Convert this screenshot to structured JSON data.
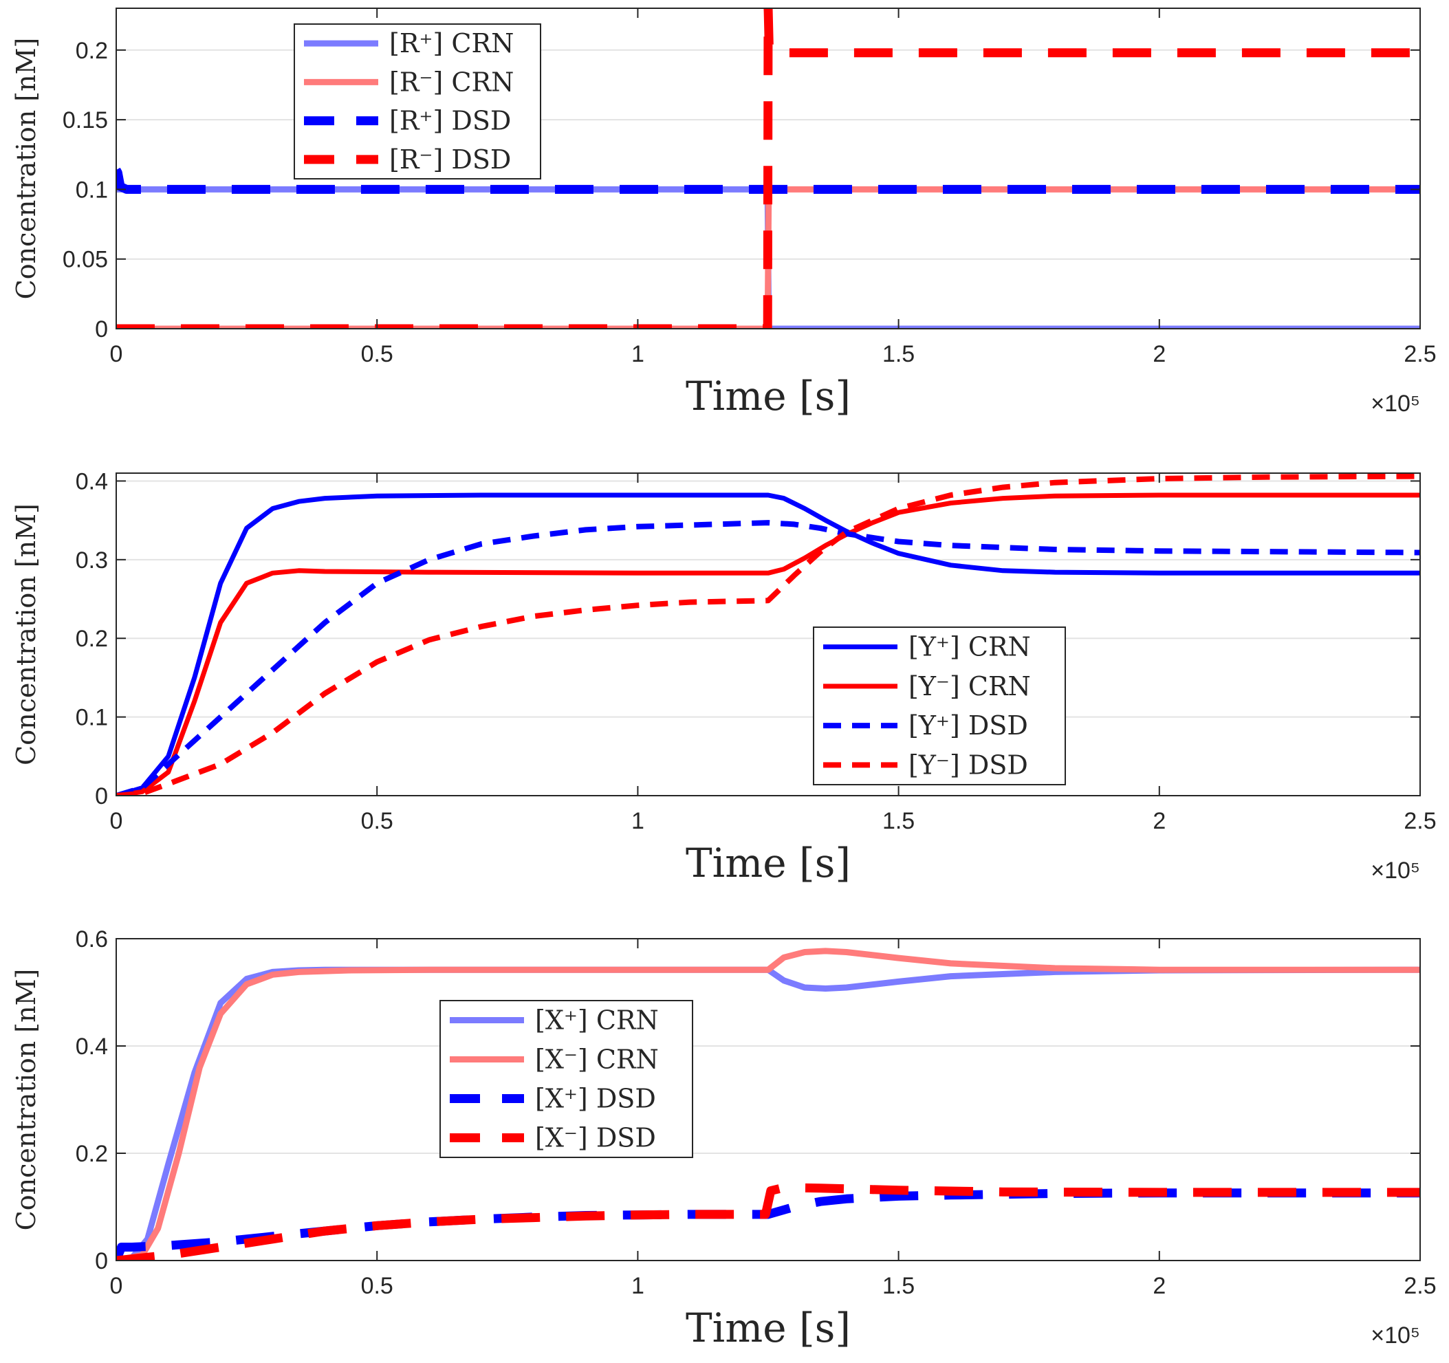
{
  "chart_data": [
    {
      "type": "line",
      "title": "",
      "xlabel": "Time [s]",
      "ylabel": "Concentration [nM]",
      "x_exponent": "×10⁵",
      "xlim": [
        0,
        2.5
      ],
      "ylim": [
        0,
        0.23
      ],
      "xticks": [
        0,
        0.5,
        1,
        1.5,
        2,
        2.5
      ],
      "xtick_labels": [
        "0",
        "0.5",
        "1",
        "1.5",
        "2",
        "2.5"
      ],
      "yticks": [
        0,
        0.05,
        0.1,
        0.15,
        0.2
      ],
      "ytick_labels": [
        "0",
        "0.05",
        "0.1",
        "0.15",
        "0.2"
      ],
      "grid": true,
      "legend_position": "top-left",
      "series": [
        {
          "name": "[R⁺] CRN",
          "color": "#7b7bff",
          "style": "solid-thick",
          "x": [
            0,
            1.249,
            1.251,
            2.5
          ],
          "y": [
            0.1,
            0.1,
            0.0,
            0.0
          ]
        },
        {
          "name": "[R⁻] CRN",
          "color": "#ff7b7b",
          "style": "solid-thick",
          "x": [
            0,
            1.249,
            1.251,
            2.5
          ],
          "y": [
            0.0,
            0.0,
            0.1,
            0.1
          ]
        },
        {
          "name": "[R⁺] DSD",
          "color": "#0000ff",
          "style": "dash-thick",
          "x": [
            0,
            0.003,
            0.008,
            0.02,
            2.5
          ],
          "y": [
            0.114,
            0.112,
            0.102,
            0.1,
            0.1
          ]
        },
        {
          "name": "[R⁻] DSD",
          "color": "#ff0000",
          "style": "dash-thick",
          "x": [
            0,
            1.249,
            1.25,
            1.252,
            1.27,
            2.5
          ],
          "y": [
            0.0,
            0.0,
            0.23,
            0.2,
            0.198,
            0.198
          ]
        }
      ]
    },
    {
      "type": "line",
      "title": "",
      "xlabel": "Time [s]",
      "ylabel": "Concentration [nM]",
      "x_exponent": "×10⁵",
      "xlim": [
        0,
        2.5
      ],
      "ylim": [
        0,
        0.41
      ],
      "xticks": [
        0,
        0.5,
        1,
        1.5,
        2,
        2.5
      ],
      "xtick_labels": [
        "0",
        "0.5",
        "1",
        "1.5",
        "2",
        "2.5"
      ],
      "yticks": [
        0,
        0.1,
        0.2,
        0.3,
        0.4
      ],
      "ytick_labels": [
        "0",
        "0.1",
        "0.2",
        "0.3",
        "0.4"
      ],
      "grid": true,
      "legend_position": "bottom-right",
      "series": [
        {
          "name": "[Y⁺] CRN",
          "color": "#0000ff",
          "style": "solid",
          "x": [
            0,
            0.05,
            0.1,
            0.15,
            0.2,
            0.25,
            0.3,
            0.35,
            0.4,
            0.5,
            0.7,
            1.0,
            1.25,
            1.28,
            1.32,
            1.36,
            1.4,
            1.45,
            1.5,
            1.6,
            1.7,
            1.8,
            2.0,
            2.5
          ],
          "y": [
            0.0,
            0.01,
            0.05,
            0.15,
            0.27,
            0.34,
            0.365,
            0.374,
            0.378,
            0.381,
            0.382,
            0.382,
            0.382,
            0.378,
            0.365,
            0.35,
            0.336,
            0.321,
            0.308,
            0.293,
            0.286,
            0.284,
            0.283,
            0.283
          ]
        },
        {
          "name": "[Y⁻] CRN",
          "color": "#ff0000",
          "style": "solid",
          "x": [
            0,
            0.05,
            0.1,
            0.15,
            0.2,
            0.25,
            0.3,
            0.35,
            0.4,
            0.6,
            1.0,
            1.25,
            1.28,
            1.32,
            1.36,
            1.4,
            1.45,
            1.5,
            1.6,
            1.7,
            1.8,
            2.0,
            2.5
          ],
          "y": [
            0.0,
            0.005,
            0.03,
            0.12,
            0.22,
            0.27,
            0.283,
            0.286,
            0.285,
            0.284,
            0.283,
            0.283,
            0.288,
            0.302,
            0.318,
            0.332,
            0.347,
            0.36,
            0.372,
            0.378,
            0.381,
            0.382,
            0.382
          ]
        },
        {
          "name": "[Y⁺] DSD",
          "color": "#0000ff",
          "style": "dash",
          "x": [
            0,
            0.05,
            0.1,
            0.2,
            0.3,
            0.4,
            0.5,
            0.6,
            0.7,
            0.8,
            0.9,
            1.0,
            1.1,
            1.25,
            1.3,
            1.35,
            1.4,
            1.5,
            1.6,
            1.8,
            2.0,
            2.5
          ],
          "y": [
            0.0,
            0.01,
            0.04,
            0.1,
            0.16,
            0.22,
            0.27,
            0.3,
            0.32,
            0.33,
            0.338,
            0.342,
            0.344,
            0.347,
            0.345,
            0.34,
            0.333,
            0.323,
            0.318,
            0.313,
            0.311,
            0.309
          ]
        },
        {
          "name": "[Y⁻] DSD",
          "color": "#ff0000",
          "style": "dash",
          "x": [
            0,
            0.05,
            0.1,
            0.2,
            0.3,
            0.4,
            0.5,
            0.6,
            0.7,
            0.8,
            0.9,
            1.0,
            1.1,
            1.25,
            1.3,
            1.35,
            1.4,
            1.5,
            1.6,
            1.7,
            1.8,
            2.0,
            2.2,
            2.5
          ],
          "y": [
            0.0,
            0.003,
            0.015,
            0.04,
            0.08,
            0.13,
            0.17,
            0.198,
            0.215,
            0.228,
            0.236,
            0.242,
            0.246,
            0.248,
            0.28,
            0.31,
            0.335,
            0.365,
            0.382,
            0.392,
            0.398,
            0.403,
            0.405,
            0.406
          ]
        }
      ]
    },
    {
      "type": "line",
      "title": "",
      "xlabel": "Time [s]",
      "ylabel": "Concentration [nM]",
      "x_exponent": "×10⁵",
      "xlim": [
        0,
        2.5
      ],
      "ylim": [
        0,
        0.6
      ],
      "xticks": [
        0,
        0.5,
        1,
        1.5,
        2,
        2.5
      ],
      "xtick_labels": [
        "0",
        "0.5",
        "1",
        "1.5",
        "2",
        "2.5"
      ],
      "yticks": [
        0,
        0.2,
        0.4,
        0.6
      ],
      "ytick_labels": [
        "0",
        "0.2",
        "0.4",
        "0.6"
      ],
      "grid": true,
      "legend_position": "left-center",
      "series": [
        {
          "name": "[X⁺] CRN",
          "color": "#7b7bff",
          "style": "solid-thick",
          "x": [
            0,
            0.03,
            0.06,
            0.1,
            0.15,
            0.2,
            0.25,
            0.3,
            0.35,
            0.4,
            0.6,
            1.0,
            1.25,
            1.28,
            1.32,
            1.36,
            1.4,
            1.5,
            1.6,
            1.8,
            2.0,
            2.5
          ],
          "y": [
            0.0,
            0.005,
            0.04,
            0.18,
            0.35,
            0.48,
            0.525,
            0.538,
            0.541,
            0.542,
            0.542,
            0.542,
            0.542,
            0.522,
            0.509,
            0.507,
            0.509,
            0.52,
            0.53,
            0.538,
            0.541,
            0.542
          ]
        },
        {
          "name": "[X⁻] CRN",
          "color": "#ff7b7b",
          "style": "solid-thick",
          "x": [
            0,
            0.05,
            0.08,
            0.12,
            0.16,
            0.2,
            0.25,
            0.3,
            0.35,
            0.45,
            0.6,
            1.0,
            1.25,
            1.28,
            1.32,
            1.36,
            1.4,
            1.5,
            1.6,
            1.8,
            2.0,
            2.5
          ],
          "y": [
            0.0,
            0.01,
            0.06,
            0.2,
            0.36,
            0.46,
            0.515,
            0.533,
            0.538,
            0.541,
            0.542,
            0.542,
            0.542,
            0.565,
            0.575,
            0.577,
            0.575,
            0.564,
            0.554,
            0.545,
            0.542,
            0.542
          ]
        },
        {
          "name": "[X⁺] DSD",
          "color": "#0000ff",
          "style": "dash-thick",
          "x": [
            0,
            0.01,
            0.03,
            0.1,
            0.2,
            0.3,
            0.4,
            0.5,
            0.6,
            0.7,
            0.8,
            0.9,
            1.0,
            1.1,
            1.25,
            1.3,
            1.35,
            1.4,
            1.5,
            1.6,
            1.8,
            2.0,
            2.5
          ],
          "y": [
            0.0,
            0.025,
            0.025,
            0.028,
            0.035,
            0.045,
            0.055,
            0.065,
            0.072,
            0.077,
            0.081,
            0.084,
            0.085,
            0.086,
            0.086,
            0.1,
            0.11,
            0.115,
            0.12,
            0.122,
            0.125,
            0.126,
            0.126
          ]
        },
        {
          "name": "[X⁻] DSD",
          "color": "#ff0000",
          "style": "dash-thick",
          "x": [
            0,
            0.1,
            0.2,
            0.3,
            0.4,
            0.5,
            0.6,
            0.7,
            0.8,
            0.9,
            1.0,
            1.1,
            1.245,
            1.255,
            1.28,
            1.35,
            1.5,
            1.7,
            2.0,
            2.5
          ],
          "y": [
            0.0,
            0.01,
            0.025,
            0.04,
            0.055,
            0.065,
            0.072,
            0.077,
            0.08,
            0.083,
            0.085,
            0.086,
            0.086,
            0.13,
            0.136,
            0.135,
            0.131,
            0.128,
            0.127,
            0.127
          ]
        }
      ]
    }
  ]
}
